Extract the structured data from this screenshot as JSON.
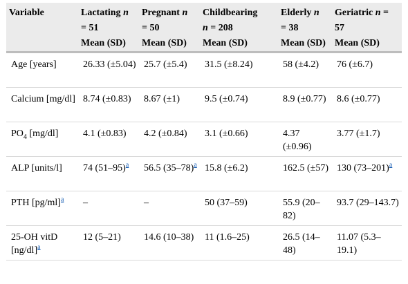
{
  "table": {
    "headers": [
      {
        "line1": "Variable",
        "n": "",
        "stat": ""
      },
      {
        "line1": "Lactating",
        "n": "n",
        "count": "= 51",
        "stat": "Mean (SD)"
      },
      {
        "line1": "Pregnant",
        "n": "n",
        "count": "= 50",
        "stat": "Mean (SD)"
      },
      {
        "line1": "Childbearing",
        "n": "n",
        "count": "= 208",
        "stat": "Mean (SD)"
      },
      {
        "line1": "Elderly",
        "n": "n",
        "count": "= 38",
        "stat": "Mean (SD)"
      },
      {
        "line1": "Geriatric",
        "n": "n",
        "count": "= 57",
        "stat": "Mean (SD)"
      }
    ],
    "footnote_mark": "a",
    "rows": [
      {
        "variable": "Age [years]",
        "cells": [
          "26.33 (±5.04)",
          "25.7 (±5.4)",
          "31.5 (±8.24)",
          "58 (±4.2)",
          "76 (±6.7)"
        ]
      },
      {
        "variable": "Calcium [mg/dl]",
        "cells": [
          "8.74 (±0.83)",
          "8.67 (±1)",
          "9.5 (±0.74)",
          "8.9 (±0.77)",
          "8.6 (±0.77)"
        ]
      },
      {
        "variable_prefix": "PO",
        "variable_sub": "4",
        "variable_suffix": " [mg/dl]",
        "cells": [
          "4.1 (±0.83)",
          "4.2 (±0.84)",
          "3.1 (±0.66)",
          "4.37 (±0.96)",
          "3.77 (±1.7)"
        ]
      },
      {
        "variable": "ALP [units/l]",
        "cells": [
          "74 (51–95)",
          "56.5 (35–78)",
          "15.8 (±6.2)",
          "162.5 (±57)",
          "130 (73–201)"
        ]
      },
      {
        "variable": "PTH [pg/ml]",
        "cells": [
          "–",
          "–",
          "50 (37–59)",
          "55.9 (20–82)",
          "93.7 (29–143.7)"
        ]
      },
      {
        "variable": "25-OH vitD [ng/dl]",
        "cells": [
          "12 (5–21)",
          "14.6 (10–38)",
          "11 (1.6–25)",
          "26.5 (14–48)",
          "11.07 (5.3–19.1)"
        ]
      }
    ]
  }
}
